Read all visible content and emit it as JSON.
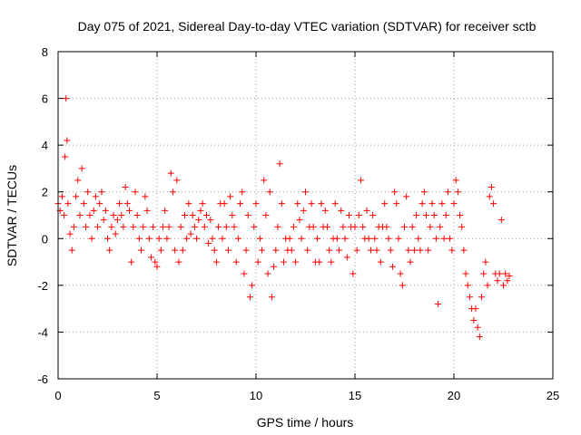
{
  "chart_data": {
    "type": "scatter",
    "title": "Day 075 of 2021, Sidereal Day-to-day VTEC variation (SDTVAR) for receiver sctb",
    "xlabel": "GPS time / hours",
    "ylabel": "SDTVAR / TECUs",
    "xlim": [
      0,
      25
    ],
    "ylim": [
      -6,
      8
    ],
    "x_ticks": [
      0,
      5,
      10,
      15,
      20,
      25
    ],
    "y_ticks": [
      -6,
      -4,
      -2,
      0,
      2,
      4,
      6,
      8
    ],
    "x_tick_labels": [
      "0",
      "5",
      "10",
      "15",
      "20",
      "25"
    ],
    "y_tick_labels": [
      "-6",
      "-4",
      "-2",
      "0",
      "2",
      "4",
      "6",
      "8"
    ],
    "grid": true,
    "marker": "+",
    "color": "#ff0000",
    "series": [
      {
        "name": "SDTVAR",
        "color": "#ff0000",
        "x": [
          0.0,
          0.1,
          0.2,
          0.3,
          0.35,
          0.4,
          0.45,
          0.5,
          0.6,
          0.7,
          0.8,
          0.9,
          1.0,
          1.1,
          1.2,
          1.3,
          1.4,
          1.5,
          1.6,
          1.7,
          1.8,
          1.9,
          2.0,
          2.1,
          2.2,
          2.3,
          2.4,
          2.5,
          2.6,
          2.7,
          2.8,
          2.9,
          3.0,
          3.1,
          3.2,
          3.3,
          3.4,
          3.5,
          3.6,
          3.7,
          3.8,
          3.9,
          4.0,
          4.1,
          4.2,
          4.3,
          4.4,
          4.5,
          4.6,
          4.7,
          4.8,
          4.9,
          5.0,
          5.1,
          5.2,
          5.3,
          5.4,
          5.5,
          5.6,
          5.7,
          5.8,
          5.9,
          6.0,
          6.1,
          6.2,
          6.3,
          6.4,
          6.5,
          6.6,
          6.7,
          6.8,
          6.9,
          7.0,
          7.1,
          7.2,
          7.3,
          7.4,
          7.5,
          7.6,
          7.7,
          7.8,
          7.9,
          8.0,
          8.1,
          8.2,
          8.3,
          8.4,
          8.5,
          8.6,
          8.7,
          8.8,
          8.9,
          9.0,
          9.1,
          9.2,
          9.3,
          9.4,
          9.5,
          9.6,
          9.7,
          9.8,
          9.9,
          10.0,
          10.1,
          10.2,
          10.3,
          10.4,
          10.5,
          10.6,
          10.7,
          10.8,
          10.9,
          11.0,
          11.1,
          11.2,
          11.3,
          11.4,
          11.5,
          11.6,
          11.7,
          11.8,
          11.9,
          12.0,
          12.1,
          12.2,
          12.3,
          12.4,
          12.5,
          12.6,
          12.7,
          12.8,
          12.9,
          13.0,
          13.1,
          13.2,
          13.3,
          13.4,
          13.5,
          13.6,
          13.7,
          13.8,
          13.9,
          14.0,
          14.1,
          14.2,
          14.3,
          14.4,
          14.5,
          14.6,
          14.7,
          14.8,
          14.9,
          15.0,
          15.1,
          15.2,
          15.3,
          15.4,
          15.5,
          15.6,
          15.7,
          15.8,
          15.9,
          16.0,
          16.1,
          16.2,
          16.3,
          16.4,
          16.5,
          16.6,
          16.7,
          16.8,
          16.9,
          17.0,
          17.1,
          17.2,
          17.3,
          17.4,
          17.5,
          17.6,
          17.7,
          17.8,
          17.9,
          18.0,
          18.1,
          18.2,
          18.3,
          18.4,
          18.5,
          18.6,
          18.7,
          18.8,
          18.9,
          19.0,
          19.1,
          19.2,
          19.3,
          19.4,
          19.5,
          19.6,
          19.7,
          19.8,
          19.9,
          20.0,
          20.1,
          20.2,
          20.3,
          20.4,
          20.5,
          20.6,
          20.7,
          20.8,
          20.9,
          21.0,
          21.1,
          21.2,
          21.3,
          21.4,
          21.5,
          21.6,
          21.7,
          21.8,
          21.9,
          22.0,
          22.1,
          22.2,
          22.3,
          22.4,
          22.5,
          22.6,
          22.7,
          22.8
        ],
        "y": [
          1.5,
          1.2,
          1.8,
          1.0,
          3.5,
          6.0,
          4.2,
          1.5,
          0.2,
          -0.5,
          0.5,
          1.8,
          2.5,
          1.0,
          3.0,
          1.5,
          0.5,
          2.0,
          1.0,
          0.0,
          1.2,
          1.8,
          0.5,
          1.5,
          2.0,
          0.8,
          1.2,
          0.0,
          -0.5,
          0.5,
          1.0,
          0.2,
          0.8,
          1.5,
          1.0,
          0.5,
          2.2,
          1.5,
          1.2,
          -1.0,
          0.5,
          2.0,
          1.0,
          0.0,
          -0.5,
          0.5,
          1.8,
          1.2,
          0.0,
          -0.8,
          0.5,
          -1.0,
          -1.2,
          0.0,
          -0.5,
          0.5,
          1.2,
          0.0,
          0.5,
          2.8,
          2.0,
          -0.5,
          2.5,
          -1.0,
          0.5,
          -0.5,
          1.0,
          0.0,
          1.5,
          0.2,
          1.0,
          0.5,
          0.0,
          0.8,
          1.2,
          1.5,
          0.5,
          1.0,
          -0.2,
          0.8,
          0.0,
          -0.5,
          -1.0,
          0.5,
          1.5,
          0.0,
          1.5,
          0.5,
          -0.5,
          1.8,
          1.0,
          0.5,
          -1.0,
          0.0,
          1.5,
          2.0,
          -1.5,
          -0.5,
          1.0,
          -2.5,
          -2.0,
          0.5,
          1.5,
          -1.0,
          0.0,
          -0.5,
          2.5,
          1.0,
          -1.5,
          2.0,
          -2.5,
          -1.2,
          -0.5,
          0.5,
          3.2,
          1.5,
          -1.0,
          0.0,
          -0.5,
          0.0,
          -0.5,
          0.5,
          -1.0,
          1.5,
          0.8,
          0.0,
          1.2,
          2.0,
          -0.5,
          0.5,
          1.5,
          0.5,
          -1.0,
          0.0,
          -1.0,
          1.5,
          0.5,
          1.2,
          0.5,
          -0.5,
          -1.0,
          0.0,
          1.5,
          0.0,
          -0.5,
          1.2,
          0.5,
          0.0,
          -0.8,
          1.0,
          0.5,
          -1.5,
          0.5,
          -0.5,
          1.0,
          2.5,
          0.5,
          0.0,
          1.2,
          0.0,
          -0.5,
          1.0,
          0.0,
          -0.5,
          0.5,
          -1.0,
          0.5,
          1.5,
          0.5,
          0.0,
          -0.5,
          -1.2,
          2.0,
          1.5,
          0.0,
          -1.5,
          -2.0,
          0.5,
          1.8,
          -0.5,
          -1.0,
          0.5,
          -0.5,
          1.0,
          0.0,
          -0.5,
          1.5,
          2.0,
          1.0,
          -0.5,
          0.5,
          1.5,
          1.0,
          0.0,
          -2.8,
          0.5,
          1.5,
          0.0,
          1.0,
          2.0,
          0.0,
          -0.5,
          1.5,
          2.5,
          2.0,
          1.0,
          0.5,
          -0.5,
          -1.5,
          -2.0,
          -2.5,
          -3.0,
          -3.5,
          -3.0,
          -3.8,
          -4.2,
          -2.5,
          -1.5,
          -1.0,
          -2.0,
          1.8,
          2.2,
          1.5,
          -1.5,
          -1.8,
          -1.5,
          0.8,
          -2.0,
          -1.5,
          -1.8,
          -1.6
        ]
      }
    ]
  }
}
